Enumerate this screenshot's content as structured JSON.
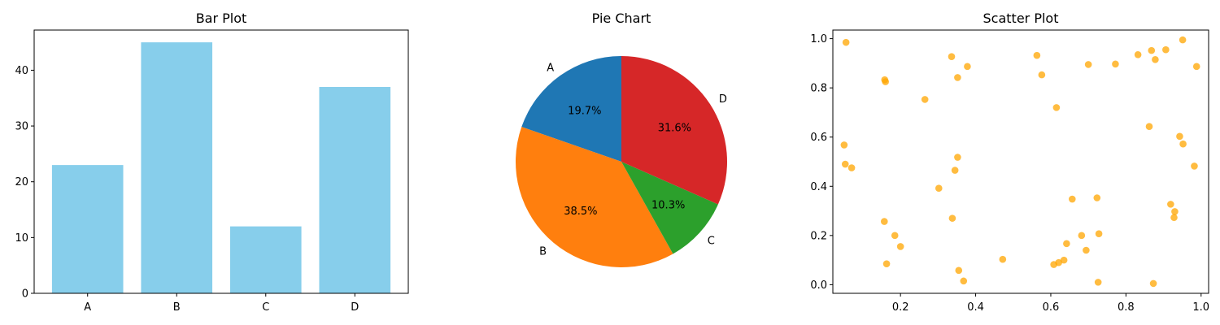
{
  "chart_data": [
    {
      "type": "bar",
      "title": "Bar Plot",
      "categories": [
        "A",
        "B",
        "C",
        "D"
      ],
      "values": [
        23,
        45,
        12,
        37
      ],
      "ylim": [
        0,
        47.2
      ],
      "yticks": [
        0,
        10,
        20,
        30,
        40
      ],
      "color": "#87ceeb"
    },
    {
      "type": "pie",
      "title": "Pie Chart",
      "labels": [
        "A",
        "B",
        "C",
        "D"
      ],
      "values": [
        23,
        45,
        12,
        37
      ],
      "percent_labels": [
        "19.7%",
        "38.5%",
        "10.3%",
        "31.6%"
      ],
      "colors": [
        "#1f77b4",
        "#ff7f0e",
        "#2ca02c",
        "#d62728"
      ]
    },
    {
      "type": "scatter",
      "title": "Scatter Plot",
      "xlim": [
        0.02,
        1.02
      ],
      "ylim": [
        -0.035,
        1.035
      ],
      "xticks": [
        0.2,
        0.4,
        0.6,
        0.8,
        1.0
      ],
      "yticks": [
        0.0,
        0.2,
        0.4,
        0.6,
        0.8,
        1.0
      ],
      "color": "#ffa500",
      "x": [
        0.055,
        0.158,
        0.16,
        0.265,
        0.336,
        0.352,
        0.378,
        0.563,
        0.576,
        0.615,
        0.7,
        0.772,
        0.832,
        0.868,
        0.878,
        0.906,
        0.951,
        0.988,
        0.05,
        0.053,
        0.07,
        0.352,
        0.345,
        0.302,
        0.338,
        0.862,
        0.943,
        0.952,
        0.982,
        0.919,
        0.93,
        0.928,
        0.657,
        0.723,
        0.185,
        0.157,
        0.2,
        0.642,
        0.682,
        0.728,
        0.694,
        0.472,
        0.608,
        0.621,
        0.635,
        0.163,
        0.355,
        0.368,
        0.726,
        0.873
      ],
      "y": [
        0.985,
        0.833,
        0.825,
        0.753,
        0.927,
        0.842,
        0.887,
        0.932,
        0.853,
        0.72,
        0.895,
        0.897,
        0.935,
        0.952,
        0.915,
        0.955,
        0.995,
        0.887,
        0.568,
        0.49,
        0.475,
        0.518,
        0.465,
        0.392,
        0.27,
        0.643,
        0.603,
        0.572,
        0.482,
        0.327,
        0.297,
        0.273,
        0.348,
        0.353,
        0.2,
        0.257,
        0.155,
        0.167,
        0.2,
        0.207,
        0.14,
        0.103,
        0.082,
        0.09,
        0.1,
        0.085,
        0.058,
        0.015,
        0.01,
        0.005
      ]
    }
  ]
}
